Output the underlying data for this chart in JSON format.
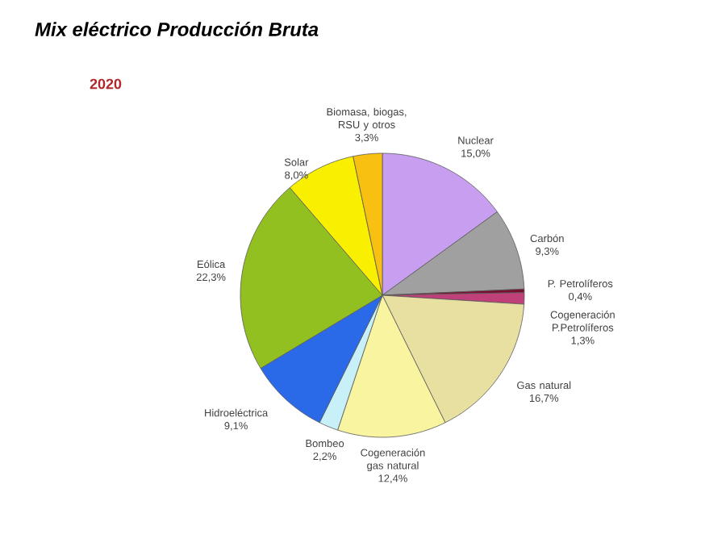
{
  "chart_data": {
    "type": "pie",
    "title": "Mix eléctrico Producción Bruta",
    "subtitle": "2020",
    "categories": [
      "Nuclear",
      "Carbón",
      "P. Petrolíferos",
      "Cogeneración P.Petrolíferos",
      "Gas natural",
      "Cogeneración gas natural",
      "Bombeo",
      "Hidroeléctrica",
      "Eólica",
      "Solar",
      "Biomasa, biogas, RSU y otros"
    ],
    "values": [
      15.0,
      9.3,
      0.4,
      1.3,
      16.7,
      12.4,
      2.2,
      9.1,
      22.3,
      8.0,
      3.3
    ],
    "value_labels": [
      "15,0%",
      "9,3%",
      "0,4%",
      "1,3%",
      "16,7%",
      "12,4%",
      "2,2%",
      "9,1%",
      "22,3%",
      "8,0%",
      "3,3%"
    ],
    "colors": [
      "#c89ff0",
      "#a0a0a0",
      "#7a1030",
      "#c0407a",
      "#e8e0a0",
      "#f8f4a0",
      "#c8f0f8",
      "#2a6ae8",
      "#92c020",
      "#f8f000",
      "#f8c010"
    ]
  }
}
